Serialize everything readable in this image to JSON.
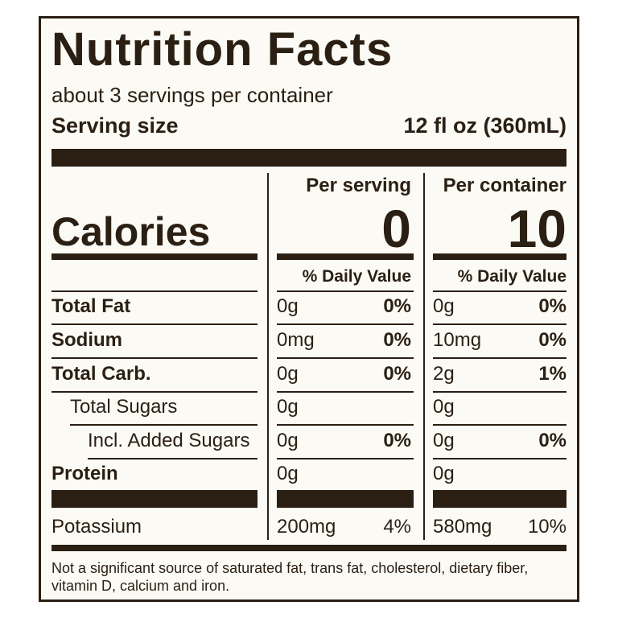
{
  "title": "Nutrition Facts",
  "servings_per_container": "about 3 servings per container",
  "serving_size_label": "Serving size",
  "serving_size_value": "12 fl oz (360mL)",
  "columns": {
    "per_serving_label": "Per serving",
    "per_container_label": "Per container",
    "daily_value_label": "% Daily Value"
  },
  "calories": {
    "label": "Calories",
    "per_serving": "0",
    "per_container": "10"
  },
  "nutrients": [
    {
      "name": "Total Fat",
      "serving_amount": "0g",
      "serving_dv": "0%",
      "container_amount": "0g",
      "container_dv": "0%"
    },
    {
      "name": "Sodium",
      "serving_amount": "0mg",
      "serving_dv": "0%",
      "container_amount": "10mg",
      "container_dv": "0%"
    },
    {
      "name": "Total Carb.",
      "serving_amount": "0g",
      "serving_dv": "0%",
      "container_amount": "2g",
      "container_dv": "1%"
    },
    {
      "name": "Total Sugars",
      "serving_amount": "0g",
      "serving_dv": "",
      "container_amount": "0g",
      "container_dv": ""
    },
    {
      "name": "Incl. Added Sugars",
      "serving_amount": "0g",
      "serving_dv": "0%",
      "container_amount": "0g",
      "container_dv": "0%"
    },
    {
      "name": "Protein",
      "serving_amount": "0g",
      "serving_dv": "",
      "container_amount": "0g",
      "container_dv": ""
    },
    {
      "name": "Potassium",
      "serving_amount": "200mg",
      "serving_dv": "4%",
      "container_amount": "580mg",
      "container_dv": "10%"
    }
  ],
  "footnote": "Not a significant source of saturated fat, trans fat, cholesterol, dietary fiber, vitamin D, calcium and iron.",
  "colors": {
    "ink": "#2a1f12",
    "background": "#fbfaf5"
  }
}
